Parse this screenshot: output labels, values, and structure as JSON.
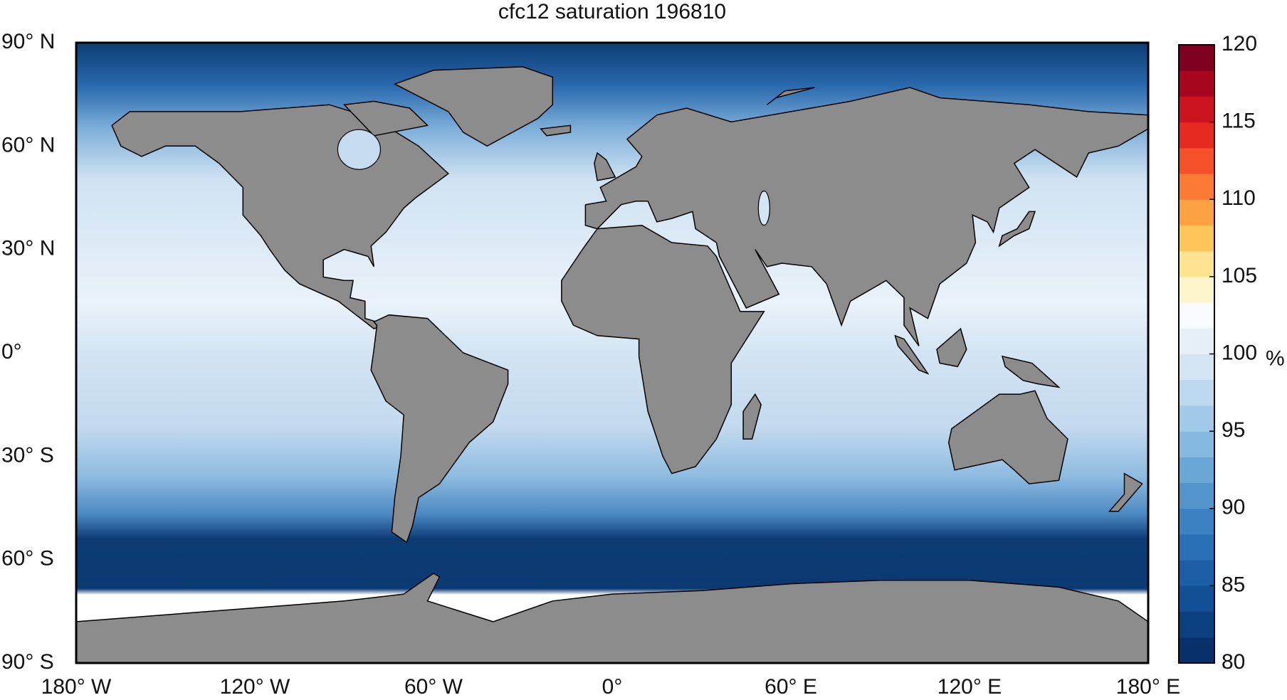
{
  "title": "cfc12 saturation 196810",
  "lat_labels": [
    "90° N",
    "60° N",
    "30° N",
    "0°",
    "30° S",
    "60° S",
    "90° S"
  ],
  "lon_labels": [
    "180° W",
    "120° W",
    "60° W",
    "0°",
    "60° E",
    "120° E",
    "180° E"
  ],
  "colorbar": {
    "unit": "%",
    "lim": [
      80,
      120
    ],
    "ticks": [
      80,
      85,
      90,
      95,
      100,
      105,
      110,
      115,
      120
    ],
    "colors": [
      "#08306b",
      "#0b3f80",
      "#124f94",
      "#1c5fa6",
      "#2a70b6",
      "#3c82c2",
      "#5394cc",
      "#6aa6d6",
      "#85b9e0",
      "#a2cae8",
      "#bcd8ee",
      "#d3e4f3",
      "#e6eff8",
      "#f7fbff",
      "#fff5cc",
      "#fee391",
      "#fdc55a",
      "#fda244",
      "#fb7a34",
      "#f4502a",
      "#e62a22",
      "#cb1420",
      "#a8061f",
      "#80001f"
    ]
  }
}
